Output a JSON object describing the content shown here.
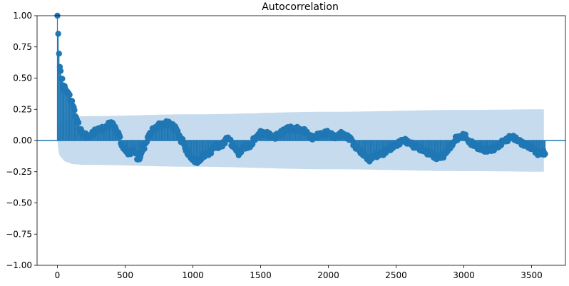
{
  "chart_data": {
    "type": "scatter",
    "title": "Autocorrelation",
    "xlabel": "",
    "ylabel": "",
    "xlim": [
      -150,
      3750
    ],
    "ylim": [
      -1.0,
      1.0
    ],
    "xticks": [
      0,
      500,
      1000,
      1500,
      2000,
      2500,
      3000,
      3500
    ],
    "yticks": [
      -1.0,
      -0.75,
      -0.5,
      -0.25,
      0.0,
      0.25,
      0.5,
      0.75,
      1.0
    ],
    "ytick_labels": [
      "−1.00",
      "−0.75",
      "−0.50",
      "−0.25",
      "0.00",
      "0.25",
      "0.50",
      "0.75",
      "1.00"
    ],
    "xtick_labels": [
      "0",
      "500",
      "1000",
      "1500",
      "2000",
      "2500",
      "3000",
      "3500"
    ],
    "max_lag": 3600,
    "colors": {
      "stem": "#1f77b4",
      "confidence_band": "#c6dbee",
      "zero_line": "#1f77b4"
    },
    "acf_control_points": [
      [
        0,
        1.0
      ],
      [
        5,
        0.85
      ],
      [
        10,
        0.72
      ],
      [
        20,
        0.58
      ],
      [
        30,
        0.5
      ],
      [
        50,
        0.42
      ],
      [
        80,
        0.38
      ],
      [
        110,
        0.3
      ],
      [
        140,
        0.18
      ],
      [
        170,
        0.08
      ],
      [
        200,
        0.05
      ],
      [
        230,
        0.03
      ],
      [
        250,
        0.05
      ],
      [
        300,
        0.09
      ],
      [
        350,
        0.1
      ],
      [
        400,
        0.14
      ],
      [
        450,
        0.06
      ],
      [
        480,
        -0.05
      ],
      [
        520,
        -0.1
      ],
      [
        560,
        -0.08
      ],
      [
        600,
        -0.15
      ],
      [
        640,
        -0.05
      ],
      [
        680,
        0.05
      ],
      [
        720,
        0.1
      ],
      [
        770,
        0.13
      ],
      [
        820,
        0.14
      ],
      [
        870,
        0.1
      ],
      [
        920,
        0.0
      ],
      [
        960,
        -0.1
      ],
      [
        1000,
        -0.15
      ],
      [
        1040,
        -0.17
      ],
      [
        1080,
        -0.12
      ],
      [
        1120,
        -0.1
      ],
      [
        1160,
        -0.05
      ],
      [
        1200,
        -0.05
      ],
      [
        1260,
        0.02
      ],
      [
        1300,
        -0.05
      ],
      [
        1340,
        -0.1
      ],
      [
        1380,
        -0.05
      ],
      [
        1420,
        -0.05
      ],
      [
        1460,
        0.02
      ],
      [
        1500,
        0.06
      ],
      [
        1550,
        0.05
      ],
      [
        1600,
        0.03
      ],
      [
        1650,
        0.06
      ],
      [
        1700,
        0.1
      ],
      [
        1760,
        0.09
      ],
      [
        1820,
        0.08
      ],
      [
        1880,
        0.02
      ],
      [
        1940,
        0.05
      ],
      [
        2000,
        0.06
      ],
      [
        2050,
        0.03
      ],
      [
        2100,
        0.05
      ],
      [
        2160,
        0.02
      ],
      [
        2200,
        -0.05
      ],
      [
        2250,
        -0.1
      ],
      [
        2300,
        -0.15
      ],
      [
        2350,
        -0.12
      ],
      [
        2400,
        -0.1
      ],
      [
        2450,
        -0.07
      ],
      [
        2500,
        -0.03
      ],
      [
        2550,
        0.0
      ],
      [
        2600,
        -0.02
      ],
      [
        2650,
        -0.05
      ],
      [
        2700,
        -0.08
      ],
      [
        2750,
        -0.1
      ],
      [
        2800,
        -0.14
      ],
      [
        2850,
        -0.12
      ],
      [
        2900,
        -0.05
      ],
      [
        2950,
        0.02
      ],
      [
        3000,
        0.04
      ],
      [
        3050,
        -0.02
      ],
      [
        3100,
        -0.05
      ],
      [
        3150,
        -0.08
      ],
      [
        3200,
        -0.07
      ],
      [
        3250,
        -0.05
      ],
      [
        3300,
        0.0
      ],
      [
        3350,
        0.03
      ],
      [
        3400,
        0.0
      ],
      [
        3450,
        -0.03
      ],
      [
        3500,
        -0.06
      ],
      [
        3550,
        -0.1
      ],
      [
        3600,
        -0.1
      ]
    ],
    "confidence_upper_control_points": [
      [
        0,
        0.0
      ],
      [
        5,
        0.09
      ],
      [
        20,
        0.13
      ],
      [
        60,
        0.17
      ],
      [
        120,
        0.19
      ],
      [
        200,
        0.195
      ],
      [
        1000,
        0.21
      ],
      [
        2000,
        0.23
      ],
      [
        3000,
        0.245
      ],
      [
        3600,
        0.25
      ]
    ]
  }
}
